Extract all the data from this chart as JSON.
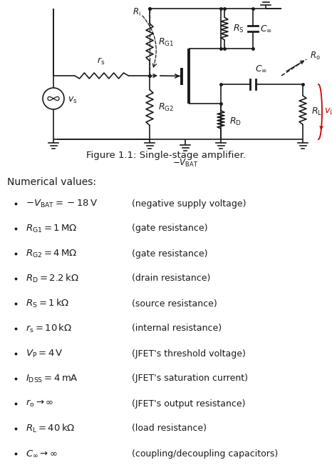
{
  "figure_caption": "Figure 1.1: Single-stage amplifier.",
  "section_title": "Numerical values:",
  "bullet_items": [
    {
      "math": "$-V_{\\mathrm{BAT}} = -18\\,\\mathrm{V}$",
      "desc": "(negative supply voltage)"
    },
    {
      "math": "$R_{\\mathrm{G1}} = 1\\,\\mathrm{M}\\Omega$",
      "desc": "(gate resistance)"
    },
    {
      "math": "$R_{\\mathrm{G2}} = 4\\,\\mathrm{M}\\Omega$",
      "desc": "(gate resistance)"
    },
    {
      "math": "$R_{\\mathrm{D}} = 2.2\\,\\mathrm{k}\\Omega$",
      "desc": "(drain resistance)"
    },
    {
      "math": "$R_{\\mathrm{S}} = 1\\,\\mathrm{k}\\Omega$",
      "desc": "(source resistance)"
    },
    {
      "math": "$r_{\\mathrm{s}} = 10\\,\\mathrm{k}\\Omega$",
      "desc": "(internal resistance)"
    },
    {
      "math": "$V_{\\mathrm{P}} = 4\\,\\mathrm{V}$",
      "desc": "(JFET's threshold voltage)"
    },
    {
      "math": "$I_{\\mathrm{DSS}} = 4\\,\\mathrm{mA}$",
      "desc": "(JFET's saturation current)"
    },
    {
      "math": "$r_{\\mathrm{o}} \\to \\infty$",
      "desc": "(JFET's output resistance)"
    },
    {
      "math": "$R_{\\mathrm{L}} = 40\\,\\mathrm{k}\\Omega$",
      "desc": "(load resistance)"
    },
    {
      "math": "$C_{\\infty} \\to \\infty$",
      "desc": "(coupling/decoupling capacitors)"
    }
  ],
  "background_color": "#ffffff",
  "text_color": "#1a1a1a",
  "red_color": "#cc0000",
  "figsize": [
    4.66,
    6.65
  ],
  "dpi": 100
}
